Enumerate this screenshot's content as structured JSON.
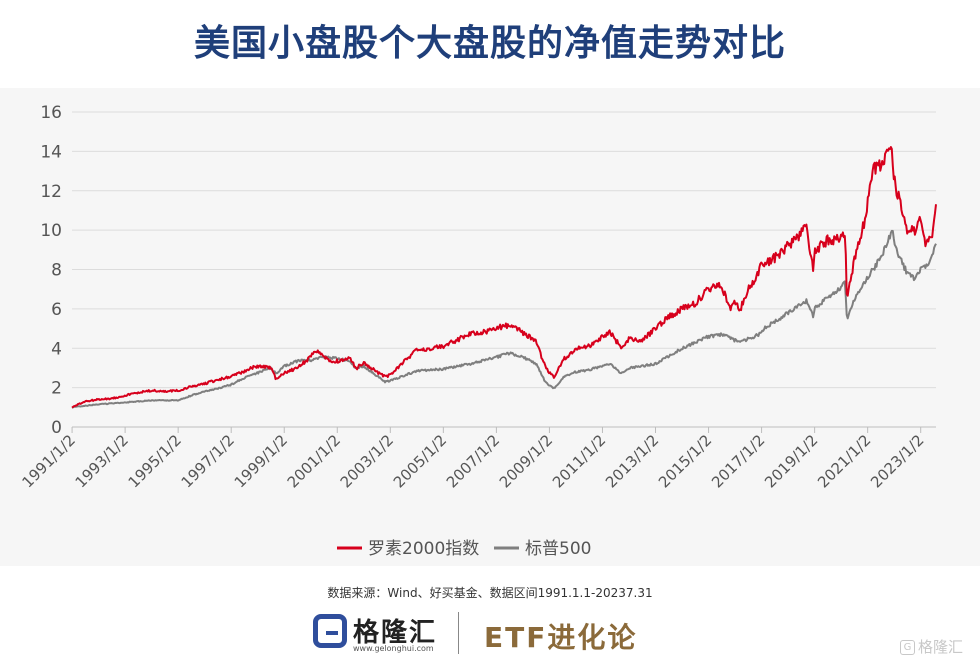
{
  "title": "美国小盘股个大盘股的净值走势对比",
  "source": "数据来源：Wind、好买基金、数据区间1991.1.1-20237.31",
  "logo": {
    "name": "格隆汇",
    "url": "www.gelonghui.com",
    "mark_icon": "g-logo-icon"
  },
  "right_brand": "ETF进化论",
  "watermark": "格隆汇",
  "colors": {
    "russell": "#d7001c",
    "sp500": "#7f7f7f",
    "title": "#1f3f7a",
    "brand": "#8b6a3a"
  },
  "chart_data": {
    "type": "line",
    "title": "美国小盘股个大盘股的净值走势对比",
    "xlabel": "",
    "ylabel": "",
    "ylim": [
      0,
      16
    ],
    "yticks": [
      0,
      2,
      4,
      6,
      8,
      10,
      12,
      14,
      16
    ],
    "xticks": [
      "1991/1/2",
      "1993/1/2",
      "1995/1/2",
      "1997/1/2",
      "1999/1/2",
      "2001/1/2",
      "2003/1/2",
      "2005/1/2",
      "2007/1/2",
      "2009/1/2",
      "2011/1/2",
      "2013/1/2",
      "2015/1/2",
      "2017/1/2",
      "2019/1/2",
      "2021/1/2",
      "2023/1/2"
    ],
    "xlim": [
      1991.0,
      2023.58
    ],
    "grid": "horizontal",
    "legend_position": "bottom",
    "series": [
      {
        "name": "罗素2000指数",
        "color": "#d7001c",
        "x": [
          1991.0,
          1991.5,
          1992.0,
          1992.5,
          1993.0,
          1993.5,
          1994.0,
          1994.5,
          1995.0,
          1995.5,
          1996.0,
          1996.5,
          1997.0,
          1997.5,
          1998.0,
          1998.5,
          1998.7,
          1999.0,
          1999.5,
          2000.0,
          2000.2,
          2000.5,
          2000.8,
          2001.0,
          2001.5,
          2001.7,
          2002.0,
          2002.5,
          2002.8,
          2003.0,
          2003.5,
          2004.0,
          2004.5,
          2005.0,
          2005.5,
          2006.0,
          2006.5,
          2007.0,
          2007.5,
          2008.0,
          2008.5,
          2008.8,
          2009.0,
          2009.2,
          2009.5,
          2010.0,
          2010.5,
          2011.0,
          2011.3,
          2011.7,
          2012.0,
          2012.5,
          2013.0,
          2013.5,
          2014.0,
          2014.5,
          2015.0,
          2015.5,
          2015.8,
          2016.0,
          2016.2,
          2016.5,
          2016.9,
          2017.0,
          2017.5,
          2018.0,
          2018.7,
          2018.95,
          2019.0,
          2019.5,
          2020.0,
          2020.15,
          2020.22,
          2020.5,
          2020.9,
          2021.0,
          2021.2,
          2021.5,
          2021.9,
          2022.0,
          2022.5,
          2022.8,
          2023.0,
          2023.2,
          2023.4,
          2023.58
        ],
        "values": [
          1.0,
          1.3,
          1.4,
          1.45,
          1.6,
          1.75,
          1.85,
          1.8,
          1.85,
          2.05,
          2.2,
          2.4,
          2.55,
          2.85,
          3.1,
          3.0,
          2.4,
          2.75,
          3.0,
          3.55,
          3.9,
          3.6,
          3.3,
          3.35,
          3.5,
          2.95,
          3.3,
          2.8,
          2.55,
          2.65,
          3.3,
          3.9,
          4.0,
          4.1,
          4.4,
          4.75,
          4.8,
          5.0,
          5.2,
          4.8,
          4.4,
          3.2,
          2.75,
          2.5,
          3.4,
          3.95,
          4.1,
          4.6,
          4.85,
          4.0,
          4.5,
          4.4,
          5.0,
          5.6,
          6.0,
          6.3,
          7.0,
          7.2,
          6.0,
          6.4,
          6.0,
          7.0,
          7.9,
          8.2,
          8.6,
          9.2,
          10.1,
          7.9,
          8.9,
          9.5,
          9.6,
          10.0,
          6.5,
          8.5,
          10.5,
          11.5,
          13.0,
          13.3,
          14.2,
          12.5,
          10.0,
          10.0,
          10.5,
          9.3,
          9.5,
          11.2
        ]
      },
      {
        "name": "标普500",
        "color": "#7f7f7f",
        "x": [
          1991.0,
          1992.0,
          1993.0,
          1994.0,
          1995.0,
          1995.5,
          1996.0,
          1996.5,
          1997.0,
          1997.5,
          1998.0,
          1998.5,
          1998.7,
          1999.0,
          1999.5,
          2000.0,
          2000.5,
          2001.0,
          2001.5,
          2001.7,
          2002.0,
          2002.5,
          2002.8,
          2003.0,
          2003.5,
          2004.0,
          2005.0,
          2006.0,
          2007.0,
          2007.5,
          2008.0,
          2008.5,
          2008.8,
          2009.0,
          2009.2,
          2009.5,
          2010.0,
          2010.5,
          2011.0,
          2011.3,
          2011.7,
          2012.0,
          2013.0,
          2014.0,
          2015.0,
          2015.5,
          2016.0,
          2016.2,
          2016.9,
          2017.0,
          2018.0,
          2018.7,
          2018.95,
          2019.0,
          2019.5,
          2020.0,
          2020.15,
          2020.22,
          2020.5,
          2021.0,
          2021.5,
          2021.95,
          2022.0,
          2022.5,
          2022.8,
          2023.0,
          2023.3,
          2023.58
        ],
        "values": [
          1.0,
          1.15,
          1.25,
          1.35,
          1.35,
          1.6,
          1.8,
          1.95,
          2.15,
          2.5,
          2.75,
          3.0,
          2.7,
          3.1,
          3.35,
          3.4,
          3.55,
          3.5,
          3.3,
          2.95,
          3.1,
          2.6,
          2.3,
          2.35,
          2.6,
          2.85,
          2.95,
          3.2,
          3.55,
          3.75,
          3.55,
          3.2,
          2.4,
          2.1,
          1.95,
          2.5,
          2.8,
          2.9,
          3.1,
          3.2,
          2.7,
          3.0,
          3.2,
          4.0,
          4.6,
          4.7,
          4.4,
          4.3,
          4.7,
          4.9,
          5.8,
          6.4,
          5.6,
          6.0,
          6.6,
          7.1,
          7.5,
          5.4,
          6.5,
          7.6,
          8.6,
          10.0,
          9.2,
          7.8,
          7.5,
          8.1,
          8.3,
          9.2
        ]
      }
    ]
  }
}
